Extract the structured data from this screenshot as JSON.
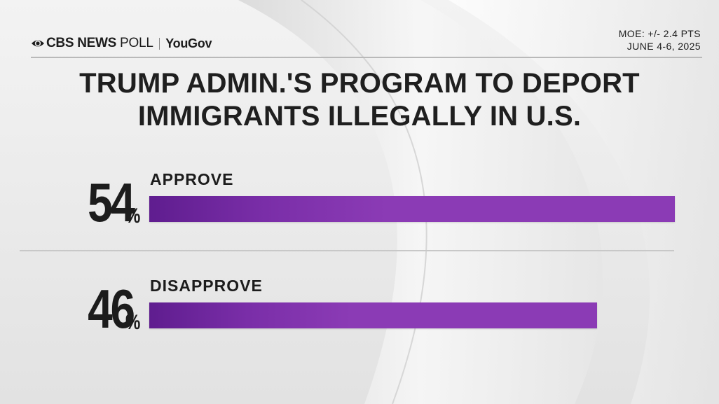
{
  "header": {
    "network": "CBS NEWS",
    "poll_label": "POLL",
    "partner": "YouGov",
    "moe": "MOE: +/- 2.4 PTS",
    "dates": "JUNE 4-6, 2025"
  },
  "title_lines": [
    "TRUMP ADMIN.'S PROGRAM TO DEPORT",
    "IMMIGRANTS ILLEGALLY IN U.S."
  ],
  "colors": {
    "bar_start": "#5f1d8f",
    "bar_end": "#8b3bb5"
  },
  "chart_data": {
    "type": "bar",
    "orientation": "horizontal",
    "title": "TRUMP ADMIN.'S PROGRAM TO DEPORT IMMIGRANTS ILLEGALLY IN U.S.",
    "categories": [
      "APPROVE",
      "DISAPPROVE"
    ],
    "values": [
      54,
      46
    ],
    "value_labels": [
      "54",
      "46"
    ],
    "unit_suffix": "%",
    "xlim": [
      0,
      54
    ],
    "grid": false,
    "legend": "none"
  }
}
